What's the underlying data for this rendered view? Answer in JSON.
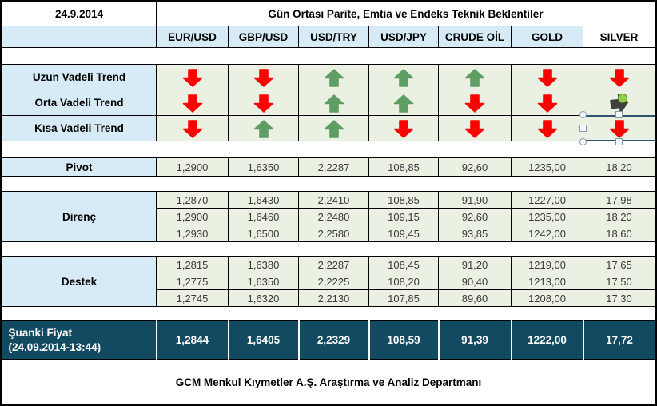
{
  "meta": {
    "date": "24.9.2014",
    "title": "Gün Ortası Parite, Emtia ve Endeks Teknik Beklentiler",
    "footer": "GCM Menkul Kıymetler A.Ş. Araştırma ve Analiz Departmanı"
  },
  "columns": [
    "EUR/USD",
    "GBP/USD",
    "USD/TRY",
    "USD/JPY",
    "CRUDE OİL",
    "GOLD",
    "SILVER"
  ],
  "trends": {
    "rows": [
      {
        "label": "Uzun Vadeli Trend",
        "arrows": [
          "down",
          "down",
          "up",
          "up",
          "up",
          "down",
          "down"
        ]
      },
      {
        "label": "Orta Vadeli Trend",
        "arrows": [
          "down",
          "down",
          "up",
          "up",
          "down",
          "down",
          "sideways-dark"
        ]
      },
      {
        "label": "Kısa Vadeli Trend",
        "arrows": [
          "down",
          "up",
          "up",
          "down",
          "down",
          "down",
          "down-selected"
        ]
      }
    ]
  },
  "pivot": {
    "label": "Pivot",
    "values": [
      "1,2900",
      "1,6350",
      "2,2287",
      "108,85",
      "92,60",
      "1235,00",
      "18,20"
    ]
  },
  "resistance": {
    "label": "Direnç",
    "rows": [
      [
        "1,2870",
        "1,6430",
        "2,2410",
        "108,85",
        "91,90",
        "1227,00",
        "17,98"
      ],
      [
        "1,2900",
        "1,6460",
        "2,2480",
        "109,15",
        "92,60",
        "1235,00",
        "18,20"
      ],
      [
        "1,2930",
        "1,6500",
        "2,2580",
        "109,45",
        "93,85",
        "1242,00",
        "18,60"
      ]
    ]
  },
  "support": {
    "label": "Destek",
    "rows": [
      [
        "1,2815",
        "1,6380",
        "2,2287",
        "108,45",
        "91,20",
        "1219,00",
        "17,65"
      ],
      [
        "1,2775",
        "1,6350",
        "2,2225",
        "108,20",
        "90,40",
        "1213,00",
        "17,50"
      ],
      [
        "1,2745",
        "1,6320",
        "2,2130",
        "107,85",
        "89,60",
        "1208,00",
        "17,30"
      ]
    ]
  },
  "current": {
    "label": "Şuanki Fiyat",
    "sublabel": "(24.09.2014-13:44)",
    "values": [
      "1,2844",
      "1,6405",
      "2,2329",
      "108,59",
      "91,39",
      "1222,00",
      "17,72"
    ]
  },
  "colors": {
    "header_blue": "#d6ebf5",
    "cell_green": "#eaf1e2",
    "price_dark": "#124a61",
    "arrow_up": "#5f9e63",
    "arrow_down": "#fe0000",
    "arrow_sideways": "#404040",
    "selection_line": "#31506e",
    "rotate_handle_green": "#8fd14f"
  }
}
